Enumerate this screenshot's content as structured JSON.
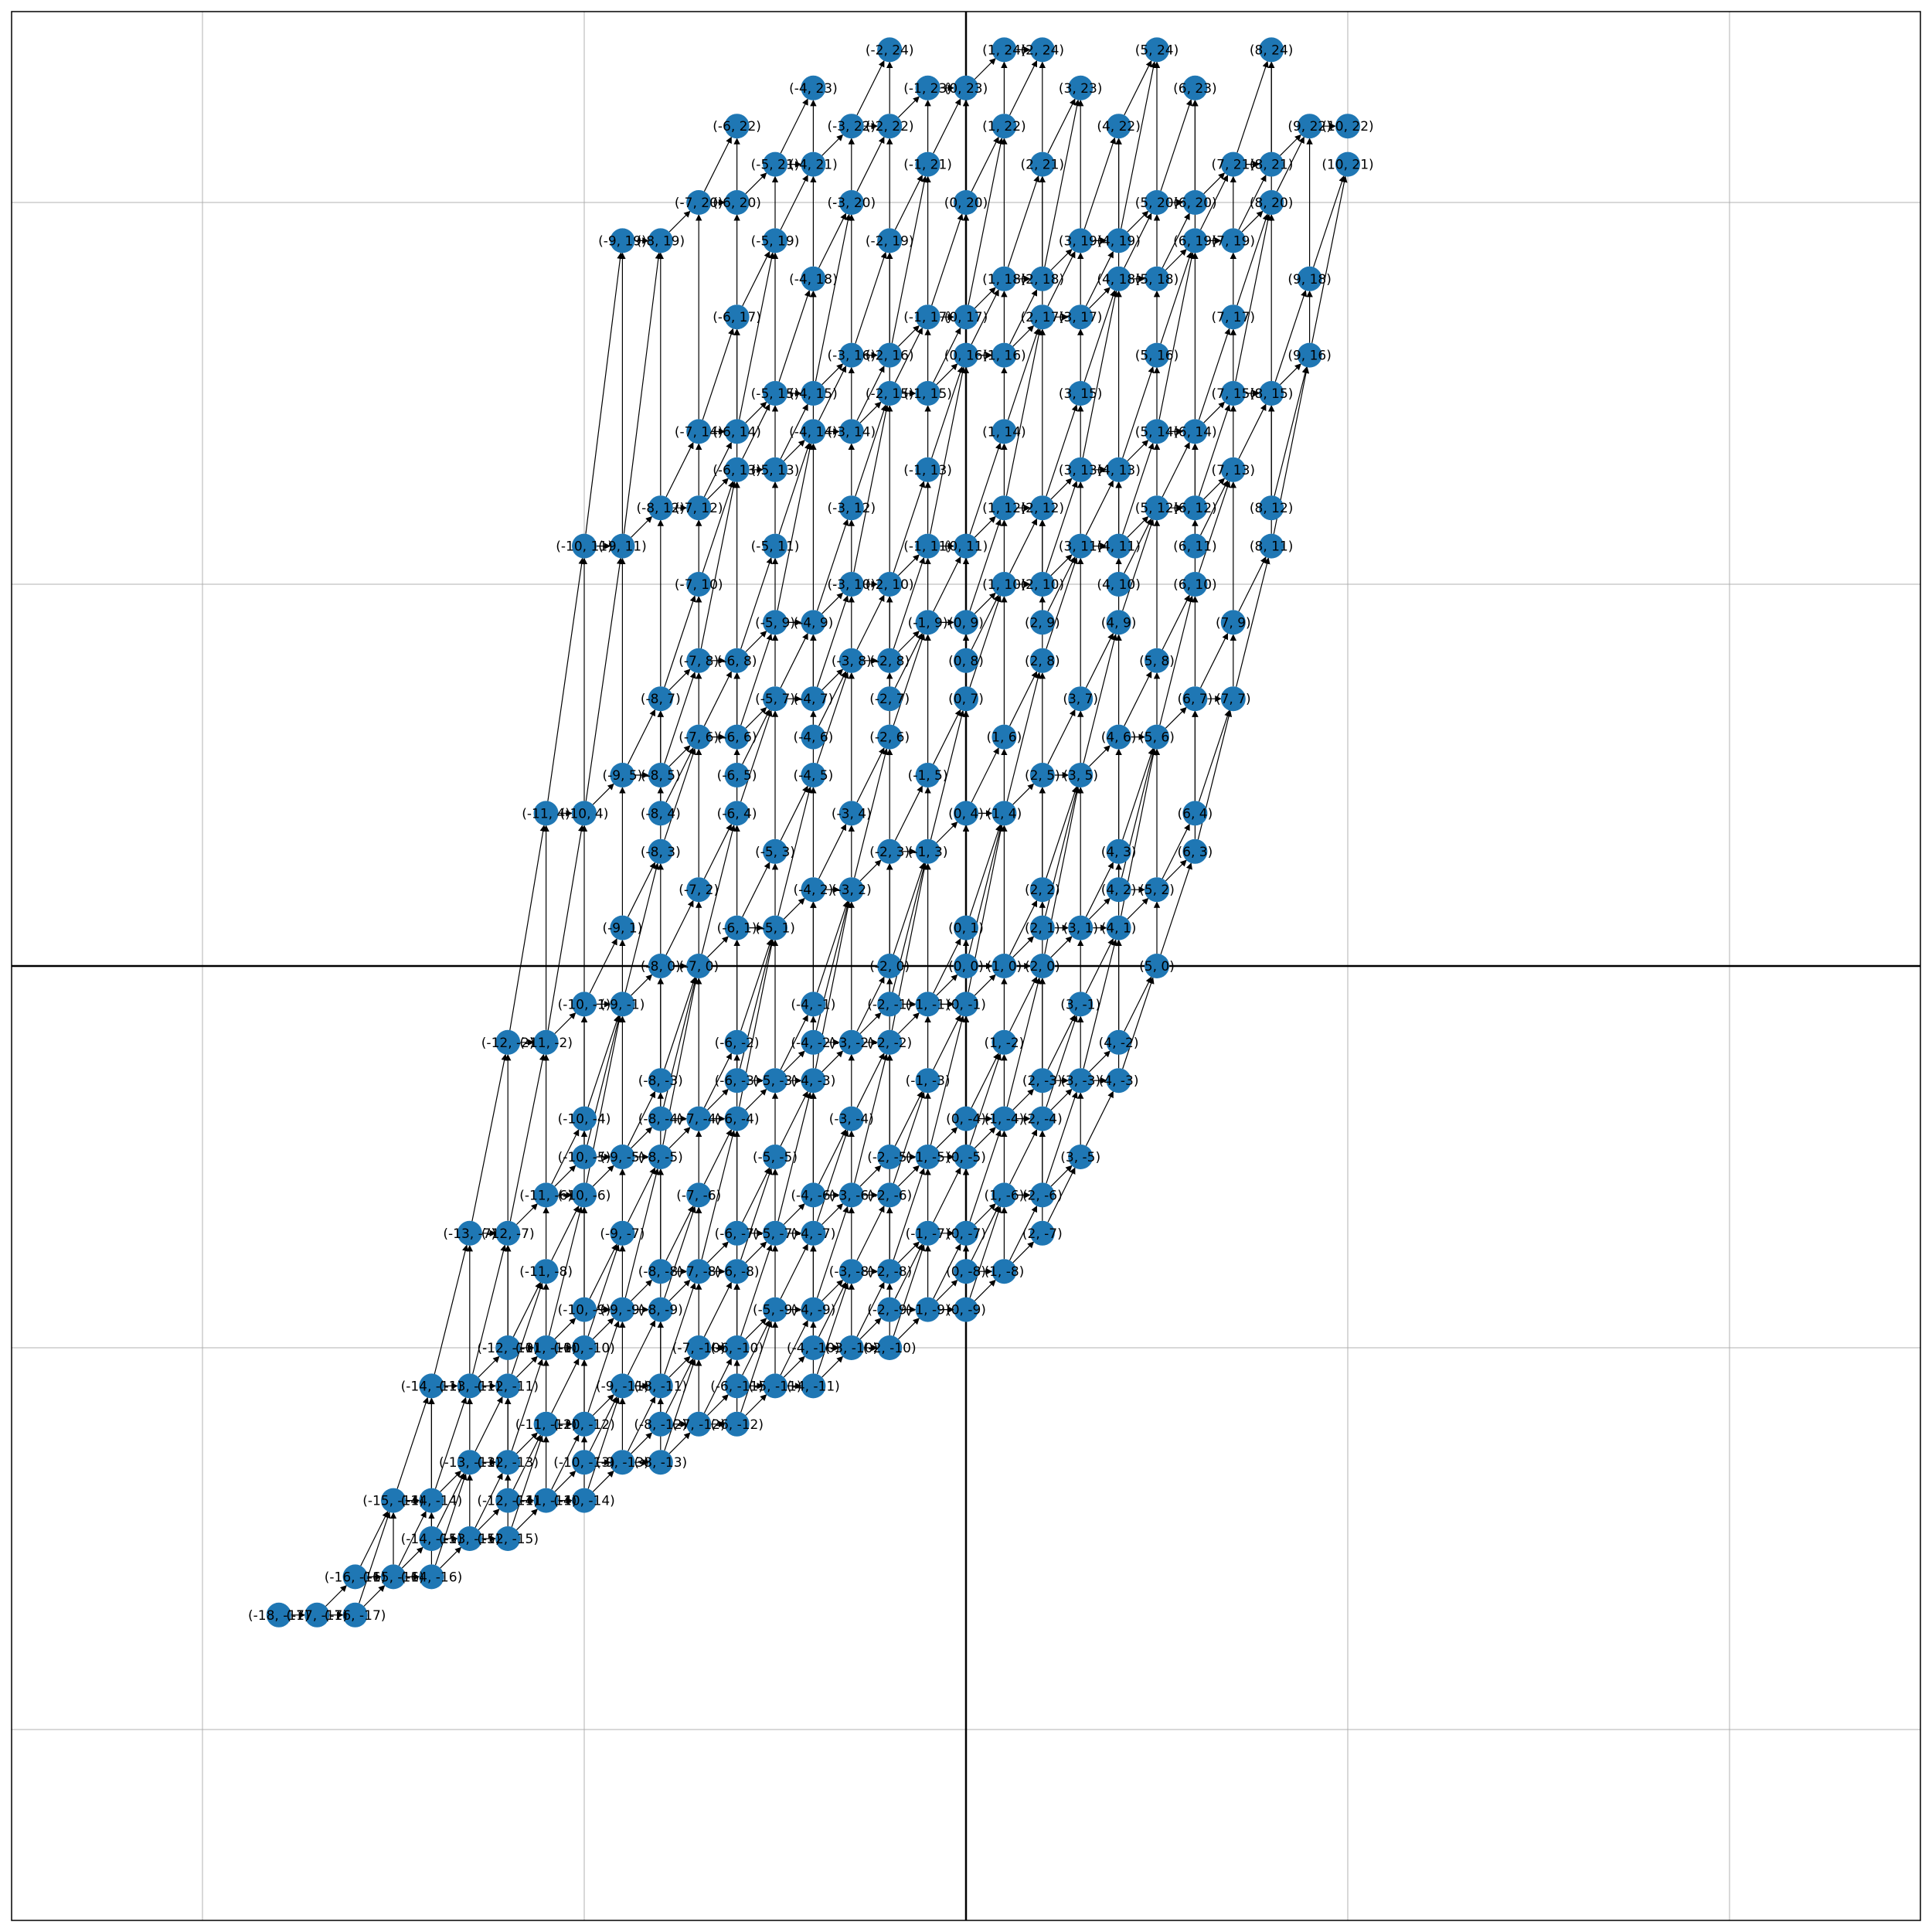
{
  "node_color": "#1f77b4",
  "edge_color": "#000000",
  "labels": [
    "(-18, -17)",
    "(-17, -17)",
    "(-16, -17)",
    "(-16, -16)",
    "(-15, -16)",
    "(-14, -16)",
    "(-14, -15)",
    "(-13, -15)",
    "(-12, -15)",
    "(-15, -14)",
    "(-14, -14)",
    "(-12, -14)",
    "(-11, -14)",
    "(-10, -14)",
    "(-13, -13)",
    "(-12, -13)",
    "(-10, -13)",
    "(-9, -13)",
    "(-8, -13)",
    "(-11, -12)",
    "(-10, -12)",
    "(-8, -12)",
    "(-7, -12)",
    "(-6, -12)",
    "(-14, -11)",
    "(-13, -11)",
    "(-12, -11)",
    "(-9, -11)",
    "(-8, -11)",
    "(-6, -11)",
    "(-5, -11)",
    "(-4, -11)",
    "(-12, -10)",
    "(-11, -10)",
    "(-10, -10)",
    "(-7, -10)",
    "(-6, -10)",
    "(-4, -10)",
    "(-3, -10)",
    "(-2, -10)",
    "(-10, -9)",
    "(-9, -9)",
    "(-8, -9)",
    "(-5, -9)",
    "(-4, -9)",
    "(-2, -9)",
    "(-1, -9)",
    "(0, -9)",
    "(-11, -8)",
    "(-8, -8)",
    "(-7, -8)",
    "(-6, -8)",
    "(-3, -8)",
    "(-2, -8)",
    "(0, -8)",
    "(1, -8)",
    "(-13, -7)",
    "(-12, -7)",
    "(-9, -7)",
    "(-6, -7)",
    "(-5, -7)",
    "(-4, -7)",
    "(-1, -7)",
    "(0, -7)",
    "(2, -7)",
    "(-11, -6)",
    "(-10, -6)",
    "(-7, -6)",
    "(-4, -6)",
    "(-3, -6)",
    "(-2, -6)",
    "(1, -6)",
    "(2, -6)",
    "(-10, -5)",
    "(-9, -5)",
    "(-8, -5)",
    "(-5, -5)",
    "(-2, -5)",
    "(-1, -5)",
    "(0, -5)",
    "(3, -5)",
    "(-10, -4)",
    "(-8, -4)",
    "(-7, -4)",
    "(-6, -4)",
    "(-3, -4)",
    "(0, -4)",
    "(1, -4)",
    "(2, -4)",
    "(-8, -3)",
    "(-6, -3)",
    "(-5, -3)",
    "(-4, -3)",
    "(-1, -3)",
    "(2, -3)",
    "(3, -3)",
    "(4, -3)",
    "(-12, -2)",
    "(-11, -2)",
    "(-6, -2)",
    "(-4, -2)",
    "(-3, -2)",
    "(-2, -2)",
    "(1, -2)",
    "(4, -2)",
    "(-10, -1)",
    "(-9, -1)",
    "(-4, -1)",
    "(-2, -1)",
    "(-1, -1)",
    "(0, -1)",
    "(3, -1)",
    "(-8, 0)",
    "(-7, 0)",
    "(-2, 0)",
    "(0, 0)",
    "(1, 0)",
    "(2, 0)",
    "(5, 0)",
    "(-9, 1)",
    "(-6, 1)",
    "(-5, 1)",
    "(0, 1)",
    "(2, 1)",
    "(3, 1)",
    "(4, 1)",
    "(-7, 2)",
    "(-4, 2)",
    "(-3, 2)",
    "(2, 2)",
    "(4, 2)",
    "(5, 2)",
    "(-8, 3)",
    "(-5, 3)",
    "(-2, 3)",
    "(-1, 3)",
    "(4, 3)",
    "(6, 3)",
    "(-11, 4)",
    "(-10, 4)",
    "(-8, 4)",
    "(-6, 4)",
    "(-3, 4)",
    "(0, 4)",
    "(1, 4)",
    "(6, 4)",
    "(-9, 5)",
    "(-8, 5)",
    "(-6, 5)",
    "(-4, 5)",
    "(-1, 5)",
    "(2, 5)",
    "(3, 5)",
    "(-7, 6)",
    "(-6, 6)",
    "(-4, 6)",
    "(-2, 6)",
    "(1, 6)",
    "(4, 6)",
    "(5, 6)",
    "(-8, 7)",
    "(-5, 7)",
    "(-4, 7)",
    "(-2, 7)",
    "(0, 7)",
    "(3, 7)",
    "(6, 7)",
    "(7, 7)",
    "(-7, 8)",
    "(-6, 8)",
    "(-3, 8)",
    "(-2, 8)",
    "(0, 8)",
    "(2, 8)",
    "(5, 8)",
    "(-5, 9)",
    "(-4, 9)",
    "(-1, 9)",
    "(0, 9)",
    "(2, 9)",
    "(4, 9)",
    "(7, 9)",
    "(-7, 10)",
    "(-3, 10)",
    "(-2, 10)",
    "(1, 10)",
    "(2, 10)",
    "(4, 10)",
    "(6, 10)",
    "(-10, 11)",
    "(-9, 11)",
    "(-5, 11)",
    "(-1, 11)",
    "(0, 11)",
    "(3, 11)",
    "(4, 11)",
    "(6, 11)",
    "(8, 11)",
    "(-8, 12)",
    "(-7, 12)",
    "(-3, 12)",
    "(1, 12)",
    "(2, 12)",
    "(5, 12)",
    "(6, 12)",
    "(8, 12)",
    "(-6, 13)",
    "(-5, 13)",
    "(-1, 13)",
    "(3, 13)",
    "(4, 13)",
    "(7, 13)",
    "(-7, 14)",
    "(-6, 14)",
    "(-4, 14)",
    "(-3, 14)",
    "(1, 14)",
    "(5, 14)",
    "(6, 14)",
    "(-5, 15)",
    "(-4, 15)",
    "(-2, 15)",
    "(-1, 15)",
    "(3, 15)",
    "(7, 15)",
    "(8, 15)",
    "(-3, 16)",
    "(-2, 16)",
    "(0, 16)",
    "(1, 16)",
    "(5, 16)",
    "(9, 16)",
    "(-6, 17)",
    "(-1, 17)",
    "(0, 17)",
    "(2, 17)",
    "(3, 17)",
    "(7, 17)",
    "(-4, 18)",
    "(1, 18)",
    "(2, 18)",
    "(4, 18)",
    "(5, 18)",
    "(9, 18)",
    "(-9, 19)",
    "(-8, 19)",
    "(-5, 19)",
    "(-2, 19)",
    "(3, 19)",
    "(4, 19)",
    "(6, 19)",
    "(7, 19)",
    "(-7, 20)",
    "(-6, 20)",
    "(-3, 20)",
    "(0, 20)",
    "(5, 20)",
    "(6, 20)",
    "(8, 20)",
    "(-5, 21)",
    "(-4, 21)",
    "(-1, 21)",
    "(2, 21)",
    "(7, 21)",
    "(8, 21)",
    "(10, 21)",
    "(-6, 22)",
    "(-3, 22)",
    "(-2, 22)",
    "(1, 22)",
    "(4, 22)",
    "(9, 22)",
    "(10, 22)",
    "(-4, 23)",
    "(-1, 23)",
    "(0, 23)",
    "(3, 23)",
    "(6, 23)",
    "(-2, 24)",
    "(1, 24)",
    "(2, 24)",
    "(5, 24)",
    "(8, 24)"
  ]
}
